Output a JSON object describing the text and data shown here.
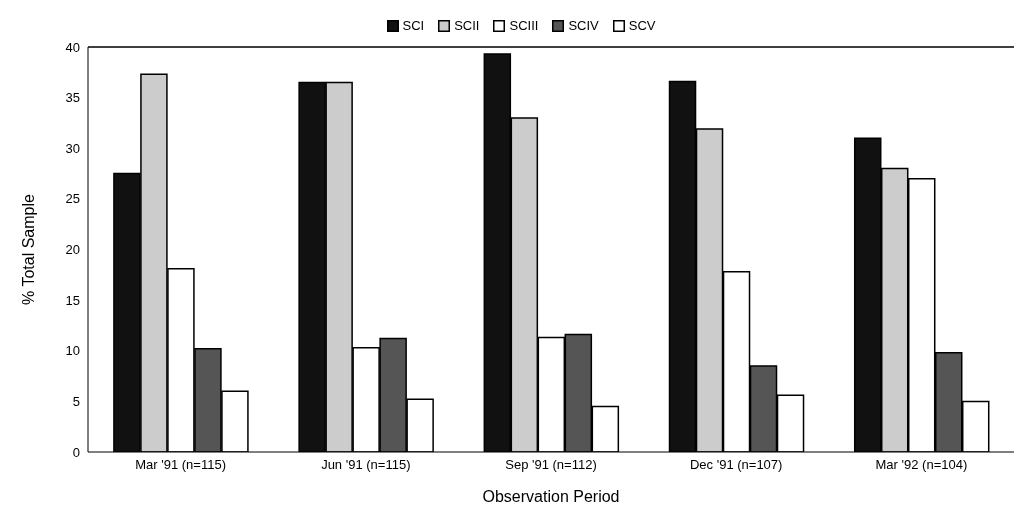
{
  "chart_data": {
    "type": "bar",
    "xlabel": "Observation Period",
    "ylabel": "% Total Sample",
    "categories": [
      "Mar '91 (n=115)",
      "Jun '91 (n=115)",
      "Sep '91 (n=112)",
      "Dec '91 (n=107)",
      "Mar '92 (n=104)"
    ],
    "series": [
      {
        "name": "SCI",
        "color": "#111111",
        "values": [
          27.5,
          36.5,
          39.3,
          36.6,
          31.0
        ]
      },
      {
        "name": "SCII",
        "color": "#cccccc",
        "values": [
          37.3,
          36.5,
          33.0,
          31.9,
          28.0
        ]
      },
      {
        "name": "SCIII",
        "color": "#ffffff",
        "values": [
          18.1,
          10.3,
          11.3,
          17.8,
          27.0
        ]
      },
      {
        "name": "SCIV",
        "color": "#555555",
        "values": [
          10.2,
          11.2,
          11.6,
          8.5,
          9.8
        ]
      },
      {
        "name": "SCV",
        "color": "#ffffff",
        "values": [
          6.0,
          5.2,
          4.5,
          5.6,
          5.0
        ]
      }
    ],
    "ylim": [
      0,
      40
    ],
    "yticks": [
      0,
      5,
      10,
      15,
      20,
      25,
      30,
      35,
      40
    ],
    "grid": false,
    "legend": "top"
  }
}
